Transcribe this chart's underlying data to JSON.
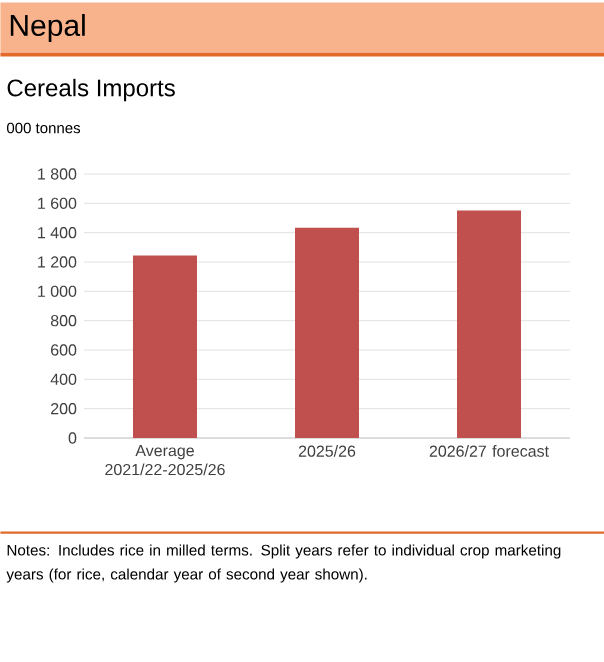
{
  "chart_data": {
    "type": "bar",
    "title": "Nepal",
    "subtitle": "Cereals Imports",
    "ylabel": "000 tonnes",
    "categories": [
      "Average 2021/22-2025/26",
      "2025/26",
      "2026/27 forecast"
    ],
    "values": [
      1245,
      1434,
      1551
    ],
    "color": "#c0504d",
    "ylim": [
      0,
      1800
    ],
    "yticks": [
      0,
      200,
      400,
      600,
      800,
      {
        "value": 1000,
        "label": "1 000"
      },
      {
        "value": 1200,
        "label": "1 200"
      },
      {
        "value": 1400,
        "label": "1 400"
      },
      {
        "value": 1600,
        "label": "1 600"
      },
      {
        "value": 1800,
        "label": "1 800"
      }
    ],
    "grid": "y",
    "annotations": [
      "Notes: Includes rice in milled terms. Split years refer to individual crop marketing years (for rice, calendar year of second year shown)."
    ]
  }
}
